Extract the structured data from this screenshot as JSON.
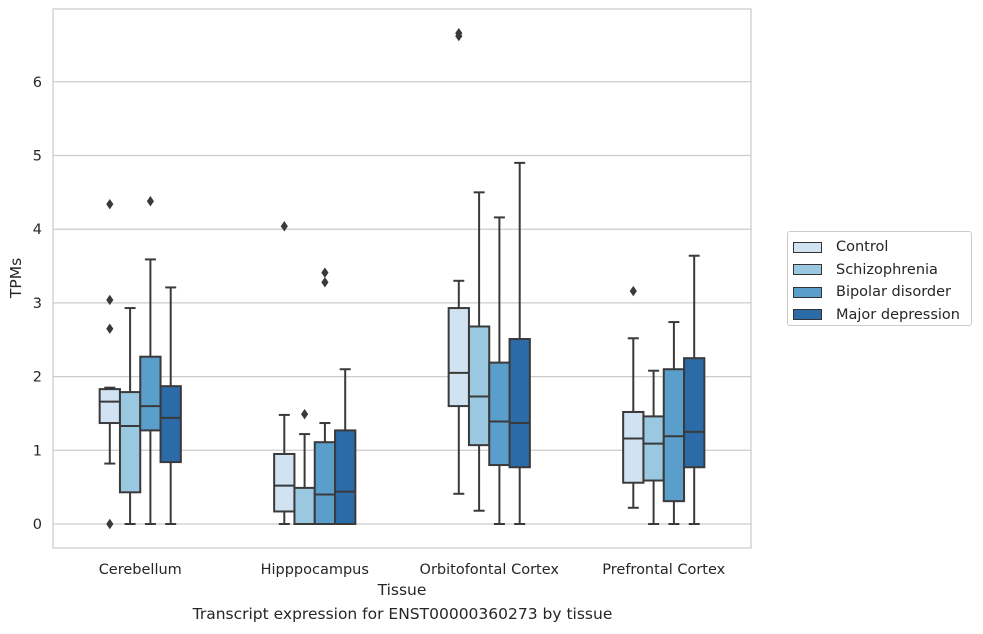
{
  "chart_data": {
    "type": "box",
    "title": "",
    "caption": "Transcript expression for ENST00000360273 by tissue",
    "xlabel": "Tissue",
    "ylabel": "TPMs",
    "ylim": [
      -0.32,
      7.0
    ],
    "yticks": [
      0,
      1,
      2,
      3,
      4,
      5,
      6
    ],
    "grid": "horizontal",
    "legend_position": "right",
    "categories": [
      "Cerebellum",
      "Hipppocampus",
      "Orbitofontal Cortex",
      "Prefrontal Cortex"
    ],
    "series": [
      {
        "name": "Control",
        "color": "#d1e2f2",
        "boxes": [
          {
            "whisker_low": 0.82,
            "q1": 1.37,
            "median": 1.66,
            "q3": 1.83,
            "whisker_high": 1.85,
            "outliers": [
              0.0,
              2.65,
              3.04,
              4.34
            ]
          },
          {
            "whisker_low": 0.0,
            "q1": 0.17,
            "median": 0.52,
            "q3": 0.95,
            "whisker_high": 1.48,
            "outliers": [
              4.04
            ]
          },
          {
            "whisker_low": 0.41,
            "q1": 1.6,
            "median": 2.05,
            "q3": 2.93,
            "whisker_high": 3.3,
            "outliers": [
              6.62,
              6.66
            ]
          },
          {
            "whisker_low": 0.22,
            "q1": 0.56,
            "median": 1.16,
            "q3": 1.52,
            "whisker_high": 2.52,
            "outliers": [
              3.16
            ]
          }
        ]
      },
      {
        "name": "Schizophrenia",
        "color": "#9ac8e0",
        "boxes": [
          {
            "whisker_low": 0.0,
            "q1": 0.43,
            "median": 1.33,
            "q3": 1.79,
            "whisker_high": 2.93,
            "outliers": []
          },
          {
            "whisker_low": 0.0,
            "q1": 0.0,
            "median": 0.0,
            "q3": 0.49,
            "whisker_high": 1.22,
            "outliers": [
              1.49
            ]
          },
          {
            "whisker_low": 0.18,
            "q1": 1.07,
            "median": 1.73,
            "q3": 2.68,
            "whisker_high": 4.5,
            "outliers": []
          },
          {
            "whisker_low": 0.0,
            "q1": 0.59,
            "median": 1.09,
            "q3": 1.46,
            "whisker_high": 2.08,
            "outliers": []
          }
        ]
      },
      {
        "name": "Bipolar disorder",
        "color": "#5a9ecc",
        "boxes": [
          {
            "whisker_low": 0.0,
            "q1": 1.27,
            "median": 1.6,
            "q3": 2.27,
            "whisker_high": 3.59,
            "outliers": [
              4.38
            ]
          },
          {
            "whisker_low": 0.0,
            "q1": 0.0,
            "median": 0.4,
            "q3": 1.11,
            "whisker_high": 1.37,
            "outliers": [
              3.28,
              3.41
            ]
          },
          {
            "whisker_low": 0.0,
            "q1": 0.8,
            "median": 1.39,
            "q3": 2.19,
            "whisker_high": 4.16,
            "outliers": []
          },
          {
            "whisker_low": 0.0,
            "q1": 0.31,
            "median": 1.19,
            "q3": 2.1,
            "whisker_high": 2.74,
            "outliers": []
          }
        ]
      },
      {
        "name": "Major depression",
        "color": "#2b6ba8",
        "boxes": [
          {
            "whisker_low": 0.0,
            "q1": 0.84,
            "median": 1.44,
            "q3": 1.87,
            "whisker_high": 3.21,
            "outliers": []
          },
          {
            "whisker_low": 0.0,
            "q1": 0.0,
            "median": 0.44,
            "q3": 1.27,
            "whisker_high": 2.1,
            "outliers": []
          },
          {
            "whisker_low": 0.0,
            "q1": 0.77,
            "median": 1.37,
            "q3": 2.51,
            "whisker_high": 4.9,
            "outliers": []
          },
          {
            "whisker_low": 0.0,
            "q1": 0.77,
            "median": 1.25,
            "q3": 2.25,
            "whisker_high": 3.64,
            "outliers": []
          }
        ]
      }
    ]
  }
}
